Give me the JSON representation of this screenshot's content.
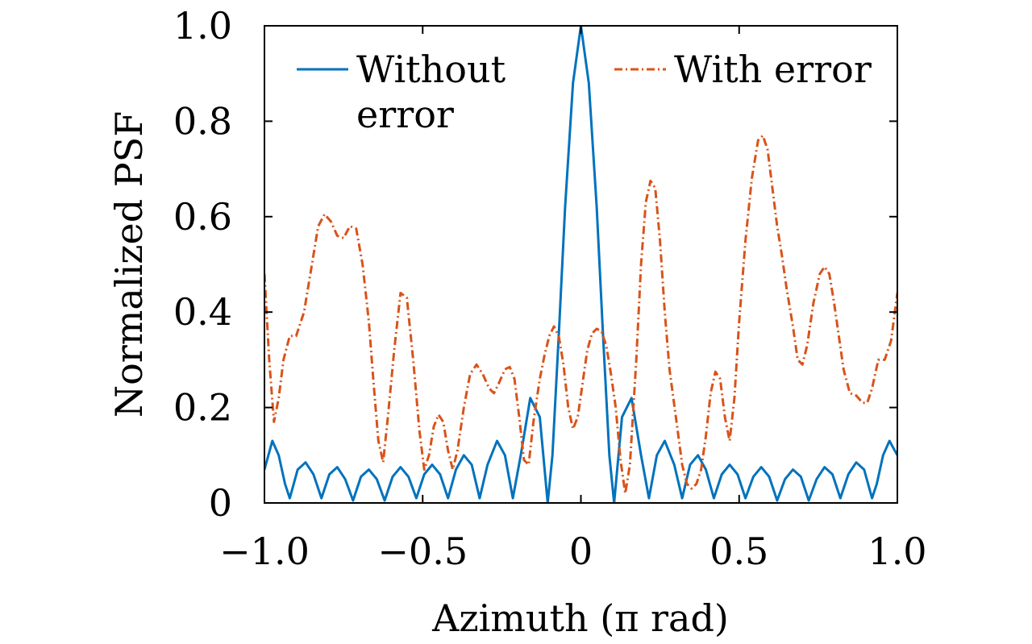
{
  "chart_data": {
    "type": "line",
    "xlabel": "Azimuth (π rad)",
    "ylabel": "Normalized PSF",
    "xlim": [
      -1.0,
      1.0
    ],
    "ylim": [
      0,
      1.0
    ],
    "xticks": [
      -1.0,
      -0.5,
      0,
      0.5,
      1.0
    ],
    "xtick_labels": [
      "−1.0",
      "−0.5",
      "0",
      "0.5",
      "1.0"
    ],
    "yticks": [
      0,
      0.2,
      0.4,
      0.6,
      0.8,
      1.0
    ],
    "ytick_labels": [
      "0",
      "0.2",
      "0.4",
      "0.6",
      "0.8",
      "1.0"
    ],
    "grid": false,
    "legend_placement": "top",
    "series": [
      {
        "name": "Without error",
        "legend_lines": [
          "Without",
          "error"
        ],
        "color": "#0072bd",
        "style": "solid",
        "points": [
          [
            -1.0,
            0.07
          ],
          [
            -0.975,
            0.13
          ],
          [
            -0.955,
            0.1
          ],
          [
            -0.935,
            0.04
          ],
          [
            -0.92,
            0.01
          ],
          [
            -0.895,
            0.07
          ],
          [
            -0.87,
            0.085
          ],
          [
            -0.845,
            0.06
          ],
          [
            -0.82,
            0.01
          ],
          [
            -0.795,
            0.06
          ],
          [
            -0.77,
            0.075
          ],
          [
            -0.745,
            0.05
          ],
          [
            -0.72,
            0.005
          ],
          [
            -0.695,
            0.055
          ],
          [
            -0.67,
            0.07
          ],
          [
            -0.645,
            0.05
          ],
          [
            -0.62,
            0.005
          ],
          [
            -0.595,
            0.055
          ],
          [
            -0.57,
            0.075
          ],
          [
            -0.545,
            0.055
          ],
          [
            -0.52,
            0.01
          ],
          [
            -0.495,
            0.06
          ],
          [
            -0.47,
            0.08
          ],
          [
            -0.445,
            0.06
          ],
          [
            -0.42,
            0.01
          ],
          [
            -0.395,
            0.07
          ],
          [
            -0.37,
            0.1
          ],
          [
            -0.345,
            0.08
          ],
          [
            -0.32,
            0.01
          ],
          [
            -0.295,
            0.08
          ],
          [
            -0.265,
            0.13
          ],
          [
            -0.24,
            0.1
          ],
          [
            -0.215,
            0.01
          ],
          [
            -0.19,
            0.1
          ],
          [
            -0.16,
            0.22
          ],
          [
            -0.13,
            0.18
          ],
          [
            -0.105,
            0.0
          ],
          [
            -0.09,
            0.1
          ],
          [
            -0.07,
            0.35
          ],
          [
            -0.05,
            0.62
          ],
          [
            -0.025,
            0.88
          ],
          [
            0,
            1.0
          ],
          [
            0.025,
            0.88
          ],
          [
            0.05,
            0.62
          ],
          [
            0.07,
            0.35
          ],
          [
            0.09,
            0.1
          ],
          [
            0.105,
            0.0
          ],
          [
            0.13,
            0.18
          ],
          [
            0.16,
            0.22
          ],
          [
            0.19,
            0.1
          ],
          [
            0.215,
            0.01
          ],
          [
            0.24,
            0.1
          ],
          [
            0.265,
            0.13
          ],
          [
            0.295,
            0.08
          ],
          [
            0.32,
            0.01
          ],
          [
            0.345,
            0.08
          ],
          [
            0.37,
            0.1
          ],
          [
            0.395,
            0.07
          ],
          [
            0.42,
            0.01
          ],
          [
            0.445,
            0.06
          ],
          [
            0.47,
            0.08
          ],
          [
            0.495,
            0.06
          ],
          [
            0.52,
            0.01
          ],
          [
            0.545,
            0.055
          ],
          [
            0.57,
            0.075
          ],
          [
            0.595,
            0.055
          ],
          [
            0.62,
            0.005
          ],
          [
            0.645,
            0.05
          ],
          [
            0.67,
            0.07
          ],
          [
            0.695,
            0.055
          ],
          [
            0.72,
            0.005
          ],
          [
            0.745,
            0.05
          ],
          [
            0.77,
            0.075
          ],
          [
            0.795,
            0.06
          ],
          [
            0.82,
            0.01
          ],
          [
            0.845,
            0.06
          ],
          [
            0.87,
            0.085
          ],
          [
            0.895,
            0.07
          ],
          [
            0.92,
            0.01
          ],
          [
            0.935,
            0.04
          ],
          [
            0.955,
            0.1
          ],
          [
            0.975,
            0.13
          ],
          [
            1.0,
            0.1
          ]
        ]
      },
      {
        "name": "With error",
        "legend_lines": [
          "With error"
        ],
        "color": "#d95319",
        "style": "dashdot",
        "points": [
          [
            -1.0,
            0.48
          ],
          [
            -0.985,
            0.3
          ],
          [
            -0.97,
            0.17
          ],
          [
            -0.955,
            0.22
          ],
          [
            -0.94,
            0.3
          ],
          [
            -0.92,
            0.35
          ],
          [
            -0.9,
            0.35
          ],
          [
            -0.875,
            0.4
          ],
          [
            -0.85,
            0.5
          ],
          [
            -0.83,
            0.58
          ],
          [
            -0.81,
            0.605
          ],
          [
            -0.79,
            0.59
          ],
          [
            -0.77,
            0.56
          ],
          [
            -0.75,
            0.555
          ],
          [
            -0.73,
            0.58
          ],
          [
            -0.71,
            0.575
          ],
          [
            -0.69,
            0.5
          ],
          [
            -0.67,
            0.38
          ],
          [
            -0.655,
            0.25
          ],
          [
            -0.64,
            0.13
          ],
          [
            -0.625,
            0.085
          ],
          [
            -0.61,
            0.18
          ],
          [
            -0.59,
            0.32
          ],
          [
            -0.57,
            0.44
          ],
          [
            -0.55,
            0.43
          ],
          [
            -0.53,
            0.3
          ],
          [
            -0.51,
            0.15
          ],
          [
            -0.495,
            0.07
          ],
          [
            -0.48,
            0.1
          ],
          [
            -0.465,
            0.16
          ],
          [
            -0.45,
            0.185
          ],
          [
            -0.435,
            0.17
          ],
          [
            -0.42,
            0.11
          ],
          [
            -0.405,
            0.07
          ],
          [
            -0.39,
            0.11
          ],
          [
            -0.37,
            0.2
          ],
          [
            -0.35,
            0.27
          ],
          [
            -0.33,
            0.29
          ],
          [
            -0.31,
            0.27
          ],
          [
            -0.29,
            0.24
          ],
          [
            -0.275,
            0.23
          ],
          [
            -0.26,
            0.25
          ],
          [
            -0.24,
            0.28
          ],
          [
            -0.225,
            0.285
          ],
          [
            -0.21,
            0.26
          ],
          [
            -0.195,
            0.18
          ],
          [
            -0.18,
            0.09
          ],
          [
            -0.165,
            0.08
          ],
          [
            -0.15,
            0.17
          ],
          [
            -0.13,
            0.26
          ],
          [
            -0.115,
            0.31
          ],
          [
            -0.1,
            0.35
          ],
          [
            -0.085,
            0.37
          ],
          [
            -0.07,
            0.35
          ],
          [
            -0.055,
            0.29
          ],
          [
            -0.04,
            0.2
          ],
          [
            -0.025,
            0.155
          ],
          [
            -0.01,
            0.18
          ],
          [
            0.005,
            0.25
          ],
          [
            0.02,
            0.32
          ],
          [
            0.035,
            0.355
          ],
          [
            0.05,
            0.365
          ],
          [
            0.065,
            0.36
          ],
          [
            0.08,
            0.33
          ],
          [
            0.095,
            0.27
          ],
          [
            0.11,
            0.2
          ],
          [
            0.125,
            0.09
          ],
          [
            0.14,
            0.02
          ],
          [
            0.155,
            0.08
          ],
          [
            0.175,
            0.3
          ],
          [
            0.19,
            0.5
          ],
          [
            0.205,
            0.63
          ],
          [
            0.22,
            0.675
          ],
          [
            0.235,
            0.66
          ],
          [
            0.25,
            0.55
          ],
          [
            0.265,
            0.4
          ],
          [
            0.28,
            0.28
          ],
          [
            0.3,
            0.18
          ],
          [
            0.32,
            0.08
          ],
          [
            0.335,
            0.04
          ],
          [
            0.35,
            0.03
          ],
          [
            0.365,
            0.04
          ],
          [
            0.38,
            0.07
          ],
          [
            0.395,
            0.14
          ],
          [
            0.41,
            0.23
          ],
          [
            0.425,
            0.275
          ],
          [
            0.44,
            0.26
          ],
          [
            0.455,
            0.18
          ],
          [
            0.47,
            0.13
          ],
          [
            0.485,
            0.22
          ],
          [
            0.5,
            0.38
          ],
          [
            0.52,
            0.55
          ],
          [
            0.54,
            0.68
          ],
          [
            0.56,
            0.76
          ],
          [
            0.575,
            0.77
          ],
          [
            0.59,
            0.74
          ],
          [
            0.605,
            0.66
          ],
          [
            0.62,
            0.58
          ],
          [
            0.635,
            0.52
          ],
          [
            0.65,
            0.45
          ],
          [
            0.67,
            0.37
          ],
          [
            0.685,
            0.3
          ],
          [
            0.7,
            0.29
          ],
          [
            0.715,
            0.33
          ],
          [
            0.735,
            0.42
          ],
          [
            0.755,
            0.48
          ],
          [
            0.77,
            0.495
          ],
          [
            0.785,
            0.48
          ],
          [
            0.8,
            0.42
          ],
          [
            0.815,
            0.35
          ],
          [
            0.83,
            0.28
          ],
          [
            0.85,
            0.23
          ],
          [
            0.87,
            0.225
          ],
          [
            0.89,
            0.21
          ],
          [
            0.905,
            0.21
          ],
          [
            0.92,
            0.24
          ],
          [
            0.94,
            0.3
          ],
          [
            0.96,
            0.3
          ],
          [
            0.98,
            0.34
          ],
          [
            1.0,
            0.44
          ]
        ]
      }
    ]
  }
}
